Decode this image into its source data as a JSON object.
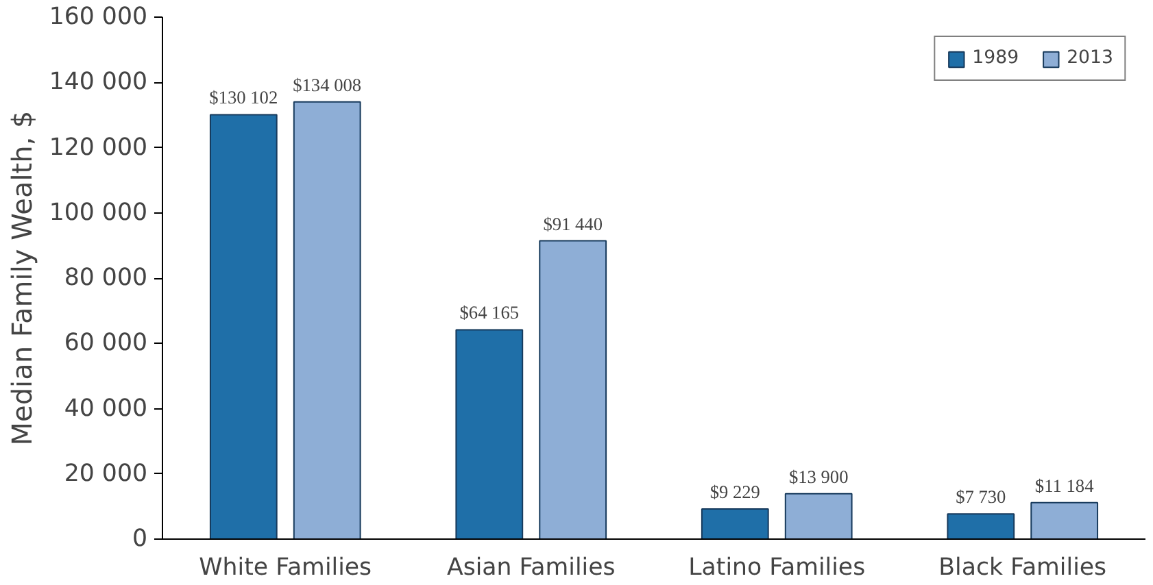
{
  "chart_data": {
    "type": "bar",
    "ylabel": "Median Family Wealth, $",
    "categories": [
      "White Families",
      "Asian Families",
      "Latino Families",
      "Black Families"
    ],
    "series": [
      {
        "name": "1989",
        "color": "#1f6fa8",
        "values": [
          130102,
          64165,
          9229,
          7730
        ],
        "value_labels": [
          "$130 102",
          "$64 165",
          "$9 229",
          "$7 730"
        ]
      },
      {
        "name": "2013",
        "color": "#8eaed6",
        "values": [
          134008,
          91440,
          13900,
          11184
        ],
        "value_labels": [
          "$134 008",
          "$91 440",
          "$13 900",
          "$11 184"
        ]
      }
    ],
    "ylim": [
      0,
      160000
    ],
    "yticks": [
      0,
      {
        "value": 20000,
        "label": "20 000"
      },
      {
        "value": 40000,
        "label": "40 000"
      },
      {
        "value": 60000,
        "label": "60 000"
      },
      {
        "value": 80000,
        "label": "80 000"
      },
      {
        "value": 100000,
        "label": "100 000"
      },
      {
        "value": 120000,
        "label": "120 000"
      },
      {
        "value": 140000,
        "label": "140 000"
      },
      {
        "value": 160000,
        "label": "160 000"
      }
    ],
    "grid": false,
    "legend": "top right"
  }
}
